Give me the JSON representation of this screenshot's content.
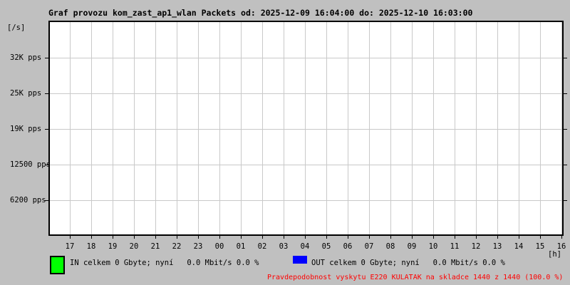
{
  "colors": {
    "background": "#c0c0c0",
    "plot_background": "#ffffff",
    "border": "#000000",
    "grid": "#c9c9c9",
    "in_series": "#00ff00",
    "out_series": "#0000ff",
    "alert_text": "#ff0000",
    "text": "#000000"
  },
  "header": {
    "title": "Graf provozu kom_zast_ap1_wlan Packets od: 2025-12-09 16:04:00 do: 2025-12-10 16:03:00"
  },
  "axes": {
    "y_unit": "[/s]",
    "x_unit": "[h]"
  },
  "legend": {
    "in": {
      "label": "IN celkem 0 Gbyte; nyní   0.0 Mbit/s 0.0 %",
      "color": "#00ff00"
    },
    "out": {
      "label": "OUT celkem 0 Gbyte; nyní   0.0 Mbit/s 0.0 %",
      "color": "#0000ff"
    }
  },
  "footer": {
    "alert": "Pravdepodobnost vyskytu E220 KULATAK na skladce 1440 z 1440 (100.0 %)",
    "color": "#ff0000"
  },
  "chart_data": {
    "type": "line",
    "title": "Graf provozu kom_zast_ap1_wlan Packets od: 2025-12-09 16:04:00 do: 2025-12-10 16:03:00",
    "xlabel": "[h]",
    "ylabel": "[/s]",
    "x": [
      "17",
      "18",
      "19",
      "20",
      "21",
      "22",
      "23",
      "00",
      "01",
      "02",
      "03",
      "04",
      "05",
      "06",
      "07",
      "08",
      "09",
      "10",
      "11",
      "12",
      "13",
      "14",
      "15",
      "16"
    ],
    "y_ticks": [
      {
        "label": "32K pps",
        "value": 32000
      },
      {
        "label": "25K pps",
        "value": 25000
      },
      {
        "label": "19K pps",
        "value": 19000
      },
      {
        "label": "12500 pps",
        "value": 12500
      },
      {
        "label": "6200 pps",
        "value": 6200
      }
    ],
    "ylim": [
      0,
      37500
    ],
    "grid": true,
    "legend_position": "bottom",
    "series": [
      {
        "name": "IN",
        "color": "#00ff00",
        "values": [
          0,
          0,
          0,
          0,
          0,
          0,
          0,
          0,
          0,
          0,
          0,
          0,
          0,
          0,
          0,
          0,
          0,
          0,
          0,
          0,
          0,
          0,
          0,
          0
        ]
      },
      {
        "name": "OUT",
        "color": "#0000ff",
        "values": [
          0,
          0,
          0,
          0,
          0,
          0,
          0,
          0,
          0,
          0,
          0,
          0,
          0,
          0,
          0,
          0,
          0,
          0,
          0,
          0,
          0,
          0,
          0,
          0
        ]
      }
    ]
  }
}
